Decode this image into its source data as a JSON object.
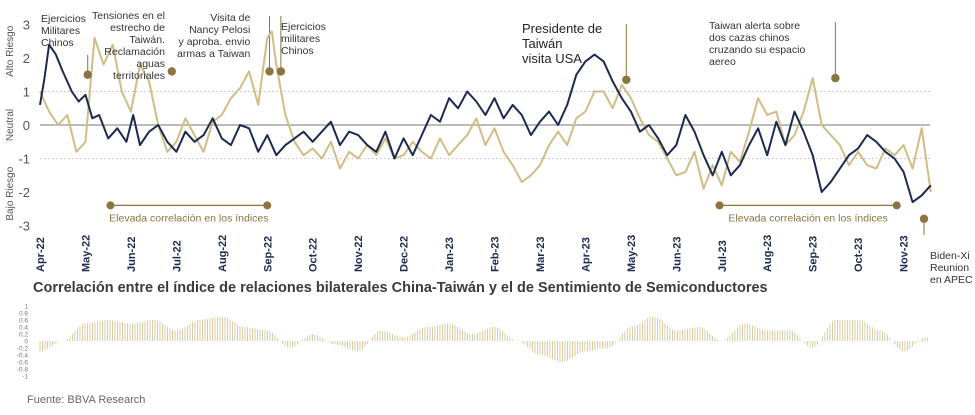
{
  "colors": {
    "bilateral": "#1b2a4e",
    "semis": "#d2bc85",
    "marker": "#8a7441",
    "axis": "#555555",
    "tick": "#1b2a4e",
    "bars": "#d7c699"
  },
  "chart_data": [
    {
      "type": "line",
      "title": "",
      "ylabel_left_top": "Alto Riesgo",
      "ylabel_left_mid": "Neutral",
      "ylabel_left_bottom": "Bajo Riesgo",
      "ylim": [
        -3,
        3
      ],
      "y_ticks": [
        "3",
        "2",
        "1",
        "0",
        "-1",
        "-2",
        "-3"
      ],
      "reference_lines": [
        1,
        0,
        -1
      ],
      "x_ticks": [
        "Apr-22",
        "May-22",
        "Jun-22",
        "Jul-22",
        "Aug-22",
        "Sep-22",
        "Oct-22",
        "Nov-22",
        "Dec-22",
        "Jan-23",
        "Feb-23",
        "Mar-23",
        "Apr-23",
        "May-23",
        "Jun-23",
        "Jul-23",
        "Aug-23",
        "Sep-23",
        "Oct-23",
        "Nov-23"
      ],
      "series": [
        {
          "name": "Índice de relaciones bilaterales China-Taiwán",
          "x": [
            0,
            0.1,
            0.2,
            0.35,
            0.5,
            0.7,
            0.85,
            1.0,
            1.15,
            1.3,
            1.5,
            1.7,
            1.9,
            2.05,
            2.2,
            2.4,
            2.6,
            2.8,
            3.0,
            3.2,
            3.4,
            3.6,
            3.8,
            4.0,
            4.2,
            4.4,
            4.6,
            4.8,
            5.0,
            5.2,
            5.4,
            5.6,
            5.8,
            6.0,
            6.2,
            6.4,
            6.6,
            6.8,
            7.0,
            7.2,
            7.4,
            7.6,
            7.8,
            8.0,
            8.2,
            8.4,
            8.6,
            8.8,
            9.0,
            9.2,
            9.4,
            9.6,
            9.8,
            10.0,
            10.2,
            10.4,
            10.6,
            10.8,
            11.0,
            11.2,
            11.4,
            11.6,
            11.8,
            12.0,
            12.2,
            12.4,
            12.6,
            12.8,
            13.0,
            13.2,
            13.4,
            13.6,
            13.8,
            14.0,
            14.2,
            14.4,
            14.6,
            14.8,
            15.0,
            15.2,
            15.4,
            15.6,
            15.8,
            16.0,
            16.2,
            16.4,
            16.6,
            16.8,
            17.0,
            17.2,
            17.4,
            17.6,
            17.8,
            18.0,
            18.2,
            18.4,
            18.6,
            18.8,
            19.0,
            19.2,
            19.4,
            19.6
          ],
          "values": [
            0.6,
            1.4,
            2.4,
            2.1,
            1.6,
            1.0,
            0.7,
            0.9,
            0.2,
            0.3,
            -0.4,
            -0.1,
            -0.5,
            0.3,
            -0.6,
            -0.2,
            0.0,
            -0.5,
            -0.8,
            -0.2,
            -0.5,
            -0.3,
            0.2,
            -0.4,
            -0.6,
            0.0,
            -0.1,
            -0.8,
            -0.3,
            -0.9,
            -0.6,
            -0.4,
            -0.2,
            -0.5,
            -0.2,
            0.1,
            -0.6,
            -0.2,
            -0.3,
            -0.6,
            -0.8,
            -0.2,
            -1.0,
            -0.4,
            -0.9,
            -0.3,
            0.3,
            0.1,
            0.8,
            0.5,
            1.0,
            0.7,
            0.3,
            0.8,
            0.2,
            0.6,
            0.3,
            -0.3,
            0.1,
            0.4,
            0.0,
            0.6,
            1.5,
            1.9,
            2.1,
            1.9,
            1.3,
            0.8,
            0.4,
            -0.2,
            0.0,
            -0.4,
            -0.9,
            -0.6,
            0.3,
            -0.2,
            -0.9,
            -1.5,
            -0.8,
            -1.5,
            -1.2,
            -0.6,
            -0.1,
            -0.9,
            0.1,
            -0.6,
            0.4,
            -0.2,
            -0.9,
            -2.0,
            -1.7,
            -1.3,
            -0.9,
            -0.7,
            -0.3,
            -0.5,
            -0.8,
            -1.0,
            -1.4,
            -2.3,
            -2.1,
            -1.8
          ]
        },
        {
          "name": "Índice de Sentimiento de Semiconductores",
          "x": [
            0,
            0.2,
            0.4,
            0.6,
            0.8,
            1.0,
            1.2,
            1.4,
            1.6,
            1.8,
            2.0,
            2.2,
            2.4,
            2.6,
            2.8,
            3.0,
            3.2,
            3.4,
            3.6,
            3.8,
            4.0,
            4.2,
            4.4,
            4.6,
            4.8,
            5.0,
            5.1,
            5.2,
            5.4,
            5.6,
            5.8,
            6.0,
            6.2,
            6.4,
            6.6,
            6.8,
            7.0,
            7.2,
            7.4,
            7.6,
            7.8,
            8.0,
            8.2,
            8.4,
            8.6,
            8.8,
            9.0,
            9.2,
            9.4,
            9.6,
            9.8,
            10.0,
            10.2,
            10.4,
            10.6,
            10.8,
            11.0,
            11.2,
            11.4,
            11.6,
            11.8,
            12.0,
            12.2,
            12.4,
            12.6,
            12.8,
            13.0,
            13.2,
            13.4,
            13.6,
            13.8,
            14.0,
            14.2,
            14.4,
            14.6,
            14.8,
            15.0,
            15.2,
            15.4,
            15.6,
            15.8,
            16.0,
            16.2,
            16.4,
            16.6,
            16.8,
            17.0,
            17.2,
            17.4,
            17.6,
            17.8,
            18.0,
            18.2,
            18.4,
            18.6,
            18.8,
            19.0,
            19.2,
            19.4,
            19.6
          ],
          "values": [
            1.0,
            0.4,
            0.0,
            0.3,
            -0.8,
            -0.5,
            2.6,
            1.8,
            2.4,
            1.0,
            0.4,
            1.8,
            1.3,
            0.0,
            -0.8,
            -0.5,
            0.2,
            -0.3,
            -0.8,
            0.1,
            0.3,
            0.8,
            1.1,
            1.6,
            0.6,
            2.6,
            2.8,
            1.8,
            0.3,
            -0.5,
            -0.9,
            -0.7,
            -1.0,
            -0.5,
            -1.3,
            -0.8,
            -1.0,
            -0.6,
            -0.9,
            -0.4,
            -1.0,
            -0.9,
            -0.5,
            -0.8,
            -1.0,
            -0.4,
            -0.9,
            -0.6,
            -0.3,
            0.2,
            -0.6,
            -0.1,
            -0.8,
            -1.2,
            -1.7,
            -1.5,
            -1.2,
            -0.6,
            -0.2,
            -0.6,
            0.2,
            0.4,
            1.0,
            1.0,
            0.5,
            1.2,
            0.8,
            0.2,
            -0.3,
            -0.5,
            -1.0,
            -1.5,
            -1.4,
            -0.8,
            -1.9,
            -1.2,
            -1.8,
            -0.8,
            -1.1,
            -0.2,
            0.8,
            0.3,
            0.4,
            -0.6,
            -0.3,
            0.4,
            1.4,
            0.0,
            -0.3,
            -0.6,
            -1.2,
            -0.8,
            -1.2,
            -1.3,
            -0.7,
            -0.9,
            -0.6,
            -1.3,
            -0.1,
            -2.0
          ]
        }
      ],
      "correlation_ranges": [
        {
          "x_start": 1.55,
          "x_end": 5.0,
          "label": "Elevada correlación en los índices"
        },
        {
          "x_start": 14.95,
          "x_end": 18.85,
          "label": "Elevada correlación en los índices"
        }
      ],
      "annotations": [
        {
          "label": "Ejercicios\nMilitares\nChinos",
          "x": 1.05,
          "y": 1.5,
          "size": "small"
        },
        {
          "label": "Tensiones en el\nestrecho de\nTaiwán.\nReclamación\naguas\nterritoriales",
          "x": 2.9,
          "y": 1.6,
          "size": "small"
        },
        {
          "label": "Visita de\nNancy Pelosi\ny aproba. envio\narmas a Taiwan",
          "x": 5.05,
          "y": 1.6,
          "size": "small"
        },
        {
          "label": "Ejercicios\nmilitares\nChinos",
          "x": 5.3,
          "y": 1.6,
          "size": "small"
        },
        {
          "label": "Presidente de\nTaiwán\nvisita USA",
          "x": 12.9,
          "y": 1.35,
          "size": "big"
        },
        {
          "label": "Taiwan alerta sobre\ndos cazas chinos\ncruzando su espacio\naereo",
          "x": 17.5,
          "y": 1.4,
          "size": "small"
        },
        {
          "label": "Biden-Xi\nReunion\nen APEC",
          "x": 19.45,
          "y": -2.8,
          "size": "small"
        }
      ]
    },
    {
      "type": "bar",
      "title": "Correlación entre el índice de relaciones bilaterales  China-Taiwán y el de Sentimiento de Semiconductores",
      "ylim": [
        -1,
        1
      ],
      "y_ticks": [
        "1",
        "0.8",
        "0.6",
        "0.4",
        "0.2",
        "0",
        "-0.2",
        "-0.4",
        "-0.6",
        "-0.8",
        "-1"
      ],
      "profile": {
        "x": [
          0,
          0.5,
          1.0,
          1.5,
          2.0,
          2.5,
          3.0,
          3.5,
          4.0,
          4.5,
          5.0,
          5.5,
          6.0,
          6.5,
          7.0,
          7.5,
          8.0,
          8.5,
          9.0,
          9.5,
          10.0,
          10.5,
          11.0,
          11.5,
          12.0,
          12.5,
          13.0,
          13.5,
          14.0,
          14.5,
          15.0,
          15.5,
          16.0,
          16.5,
          17.0,
          17.5,
          18.0,
          18.5,
          19.0,
          19.5
        ],
        "values": [
          -0.3,
          0.0,
          0.5,
          0.6,
          0.5,
          0.6,
          0.3,
          0.6,
          0.7,
          0.4,
          0.3,
          -0.2,
          0.2,
          -0.1,
          -0.3,
          0.3,
          0.1,
          0.4,
          0.5,
          0.2,
          0.4,
          0.0,
          -0.4,
          -0.6,
          -0.3,
          -0.2,
          0.4,
          0.7,
          0.3,
          0.4,
          0.0,
          0.5,
          0.3,
          0.3,
          -0.2,
          0.6,
          0.6,
          0.3,
          -0.3,
          0.1
        ]
      }
    }
  ],
  "source": "Fuente: BBVA Research"
}
